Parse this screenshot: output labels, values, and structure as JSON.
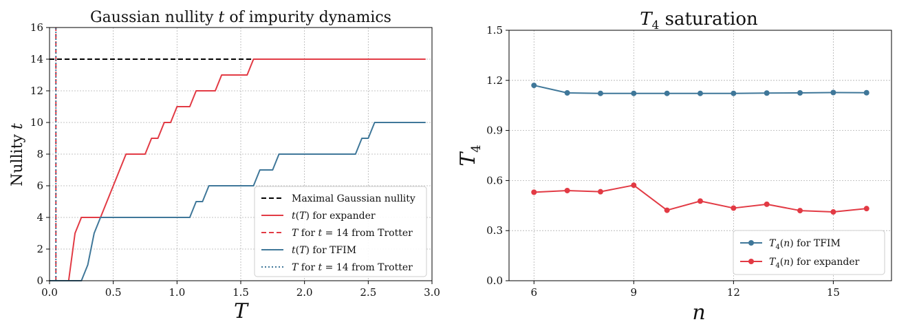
{
  "chart_data": [
    {
      "type": "line",
      "title": "Gaussian nullity t of impurity dynamics",
      "xlabel": "T",
      "ylabel": "Nullity t",
      "xlim": [
        0,
        3.0
      ],
      "ylim": [
        0,
        16
      ],
      "xticks": [
        "0.0",
        "0.5",
        "1.0",
        "1.5",
        "2.0",
        "2.5",
        "3.0"
      ],
      "yticks": [
        "0",
        "2",
        "4",
        "6",
        "8",
        "10",
        "12",
        "14",
        "16"
      ],
      "grid": true,
      "legend_position": "bottom-right",
      "series": [
        {
          "name": "Maximal Gaussian nullity",
          "style": "dashed",
          "color": "#000000",
          "x": [
            0,
            2.95
          ],
          "y": [
            14,
            14
          ]
        },
        {
          "name": "t(T) for expander",
          "style": "solid",
          "color": "#e23a44",
          "x": [
            0,
            0.15,
            0.2,
            0.25,
            0.35,
            0.4,
            0.6,
            0.75,
            0.8,
            0.85,
            0.9,
            0.95,
            1.0,
            1.1,
            1.15,
            1.3,
            1.35,
            1.45,
            1.55,
            1.6,
            2.95
          ],
          "y": [
            0,
            0,
            3,
            4,
            4,
            4,
            8,
            8,
            9,
            9,
            10,
            10,
            11,
            11,
            12,
            12,
            13,
            13,
            13,
            14,
            14
          ]
        },
        {
          "name": "T for t = 14 from Trotter",
          "style": "dashed",
          "color": "#e23a44",
          "x": [
            0.05,
            0.05
          ],
          "y": [
            0,
            16
          ]
        },
        {
          "name": "t(T) for TFIM",
          "style": "solid",
          "color": "#3f7799",
          "x": [
            0,
            0.25,
            0.3,
            0.35,
            0.4,
            0.6,
            1.0,
            1.1,
            1.15,
            1.2,
            1.25,
            1.3,
            1.55,
            1.6,
            1.65,
            1.7,
            1.75,
            1.8,
            2.0,
            2.4,
            2.45,
            2.5,
            2.55,
            2.95
          ],
          "y": [
            0,
            0,
            1,
            3,
            4,
            4,
            4,
            4,
            5,
            5,
            6,
            6,
            6,
            6,
            7,
            7,
            7,
            8,
            8,
            8,
            9,
            9,
            10,
            10
          ]
        },
        {
          "name": "T for t = 14 from Trotter",
          "style": "dotted",
          "color": "#3f7799",
          "x": [
            0.05,
            0.05
          ],
          "y": [
            0,
            16
          ]
        }
      ]
    },
    {
      "type": "line",
      "title": "T4 saturation",
      "xlabel": "n",
      "ylabel": "T4",
      "xlim": [
        5.25,
        16.75
      ],
      "ylim": [
        0.0,
        1.5
      ],
      "xticks": [
        "6",
        "9",
        "12",
        "15"
      ],
      "yticks": [
        "0.0",
        "0.3",
        "0.6",
        "0.9",
        "1.2",
        "1.5"
      ],
      "grid": true,
      "legend_position": "bottom-right",
      "series": [
        {
          "name": "T4(n) for TFIM",
          "color": "#3f7799",
          "marker": "circle",
          "x": [
            6,
            7,
            8,
            9,
            10,
            11,
            12,
            13,
            14,
            15,
            16
          ],
          "y": [
            1.17,
            1.125,
            1.122,
            1.122,
            1.122,
            1.122,
            1.122,
            1.124,
            1.125,
            1.127,
            1.126
          ]
        },
        {
          "name": "T4(n) for expander",
          "color": "#e23a44",
          "marker": "circle",
          "x": [
            6,
            7,
            8,
            9,
            10,
            11,
            12,
            13,
            14,
            15,
            16
          ],
          "y": [
            0.53,
            0.54,
            0.533,
            0.572,
            0.422,
            0.477,
            0.435,
            0.458,
            0.42,
            0.412,
            0.432
          ]
        }
      ]
    }
  ]
}
